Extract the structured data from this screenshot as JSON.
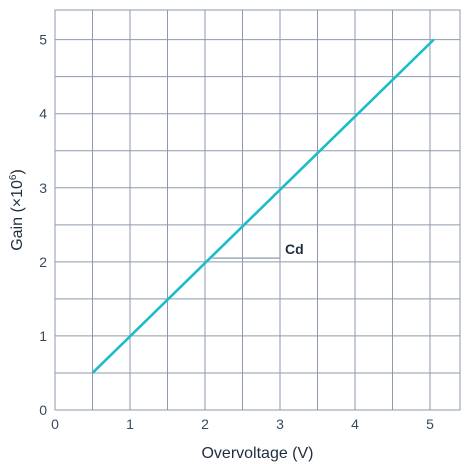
{
  "chart_data": {
    "type": "line",
    "title": "",
    "xlabel": "Overvoltage (V)",
    "ylabel": "Gain (×10",
    "ylabel_exponent": "6",
    "ylabel_close": ")",
    "xlim": [
      0,
      5.4
    ],
    "ylim": [
      0,
      5.4
    ],
    "x_ticks": [
      0,
      1,
      2,
      3,
      4,
      5
    ],
    "y_ticks": [
      0,
      1,
      2,
      3,
      4,
      5
    ],
    "x_tick_labels": [
      "0",
      "1",
      "2",
      "3",
      "4",
      "5"
    ],
    "y_tick_labels": [
      "0",
      "1",
      "2",
      "3",
      "4",
      "5"
    ],
    "minor_grid_step": 0.5,
    "grid": true,
    "series": [
      {
        "x": [
          0.5,
          5.05
        ],
        "y": [
          0.5,
          5.0
        ],
        "color": "#1bbcc9"
      }
    ],
    "annotation": {
      "label": "Cd",
      "corner": [
        3.0,
        2.05
      ],
      "from": [
        2.1,
        2.05
      ],
      "to": [
        3.0,
        2.95
      ]
    }
  },
  "colors": {
    "grid": "#8e9aac",
    "line": "#1bbcc9",
    "annotation": "#8e9aac"
  }
}
